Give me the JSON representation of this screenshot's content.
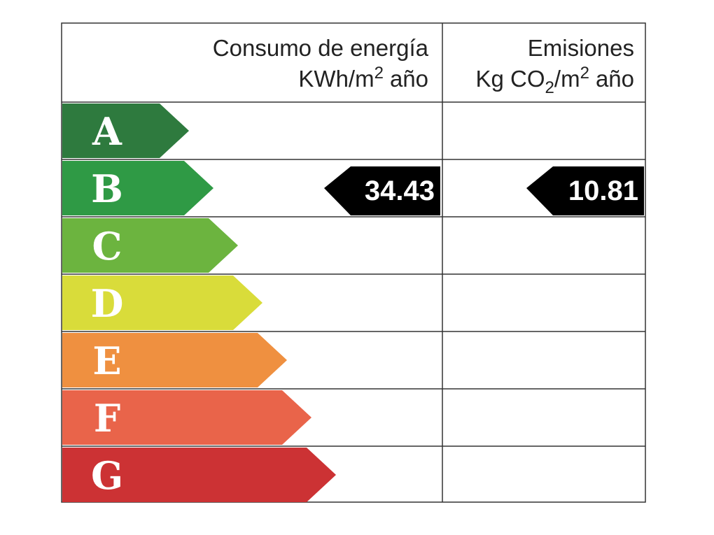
{
  "header": {
    "energy": {
      "title": "Consumo de energía",
      "unit": [
        "KWh/m",
        "2",
        "año"
      ]
    },
    "emissions": {
      "title": "Emisiones",
      "unit": [
        "Kg CO",
        "2",
        "/m",
        "2",
        "año"
      ]
    }
  },
  "rows": [
    {
      "letter": "A",
      "color": "#2e7a3e"
    },
    {
      "letter": "B",
      "color": "#2f9a45",
      "energy": 34.43,
      "emissions": 10.81
    },
    {
      "letter": "C",
      "color": "#6cb43f"
    },
    {
      "letter": "D",
      "color": "#d9dc3a"
    },
    {
      "letter": "E",
      "color": "#ef9040"
    },
    {
      "letter": "F",
      "color": "#e9644a"
    },
    {
      "letter": "G",
      "color": "#cc3234"
    }
  ]
}
